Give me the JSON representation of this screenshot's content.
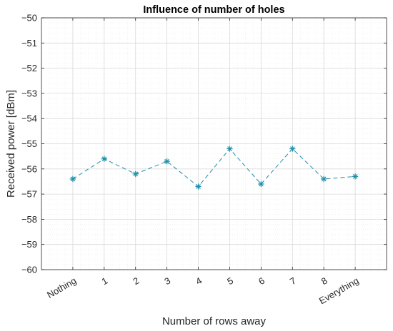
{
  "chart_data": {
    "type": "line",
    "title": "Influence of number of holes",
    "xlabel": "Number of rows away",
    "ylabel": "Received power [dBm]",
    "categories": [
      "Nothing",
      "1",
      "2",
      "3",
      "4",
      "5",
      "6",
      "7",
      "8",
      "Everything"
    ],
    "series": [
      {
        "values": [
          -56.4,
          -55.6,
          -56.2,
          -55.7,
          -56.7,
          -55.2,
          -56.6,
          -55.2,
          -56.4,
          -56.3
        ]
      }
    ],
    "ylim": [
      -60,
      -50
    ],
    "yticks": [
      "-50",
      "-51",
      "-52",
      "-53",
      "-54",
      "-55",
      "-56",
      "-57",
      "-58",
      "-59",
      "-60"
    ],
    "grid": true,
    "minor_grid": true,
    "line_style": "dashed",
    "marker": "asterisk",
    "colors": {
      "series": "#1f8fa8",
      "major_grid": "#d9d9d9",
      "minor_grid": "#ececec",
      "axes": "#262626"
    }
  }
}
